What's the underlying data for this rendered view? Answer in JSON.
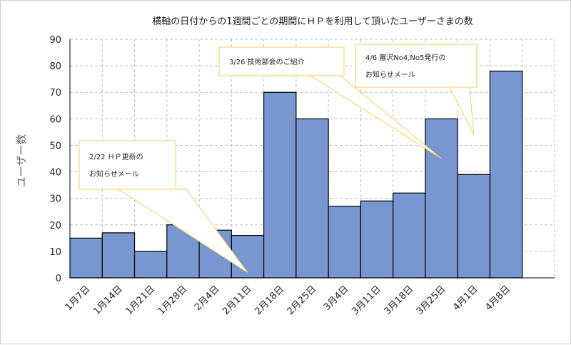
{
  "chart_data": {
    "type": "bar",
    "title": "横軸の日付からの1週間ごとの期間にＨＰを利用して頂いたユーザーさまの数",
    "xlabel": "",
    "ylabel": "ユーザー数",
    "categories": [
      "1月7日",
      "1月14日",
      "1月21日",
      "1月28日",
      "2月4日",
      "2月11日",
      "2月18日",
      "2月25日",
      "3月4日",
      "3月11日",
      "3月18日",
      "3月25日",
      "4月1日",
      "4月8日"
    ],
    "values": [
      15,
      17,
      10,
      20,
      18,
      16,
      70,
      60,
      27,
      29,
      32,
      60,
      39,
      78
    ],
    "ylim": [
      0,
      90
    ],
    "yticks": [
      0,
      10,
      20,
      30,
      40,
      50,
      60,
      70,
      80,
      90
    ],
    "grid": true,
    "legend": "none",
    "colors": {
      "bar": "#7897d1",
      "bar_edge": "#000000",
      "grid": "#bfbfbf",
      "callout_fill": "#ffffff",
      "callout_border": "#f2d25e"
    },
    "annotations": [
      {
        "lines": [
          "2/22 ＨＰ更新の",
          "お知らせメール"
        ],
        "target_category": "2月11日",
        "target_value": 2
      },
      {
        "lines": [
          "3/26 技術部会のご紹介"
        ],
        "target_category": "3月25日",
        "target_value": 45
      },
      {
        "lines": [
          "4/6 審沢No4,No5発行の",
          "お知らせメール"
        ],
        "target_category": "4月1日",
        "target_value": 54
      }
    ]
  }
}
